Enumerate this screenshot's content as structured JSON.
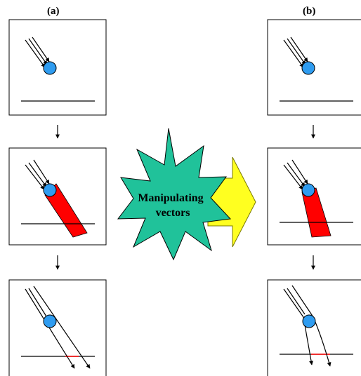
{
  "labels": {
    "a": "(a)",
    "b": "(b)"
  },
  "center_text": {
    "line1": "Manipulating",
    "line2": "vectors"
  },
  "colors": {
    "sphere": "#2f9cf0",
    "beam": "#ff0000",
    "burst": "#20c29a",
    "arrow": "#ffff20",
    "line": "#000000"
  }
}
